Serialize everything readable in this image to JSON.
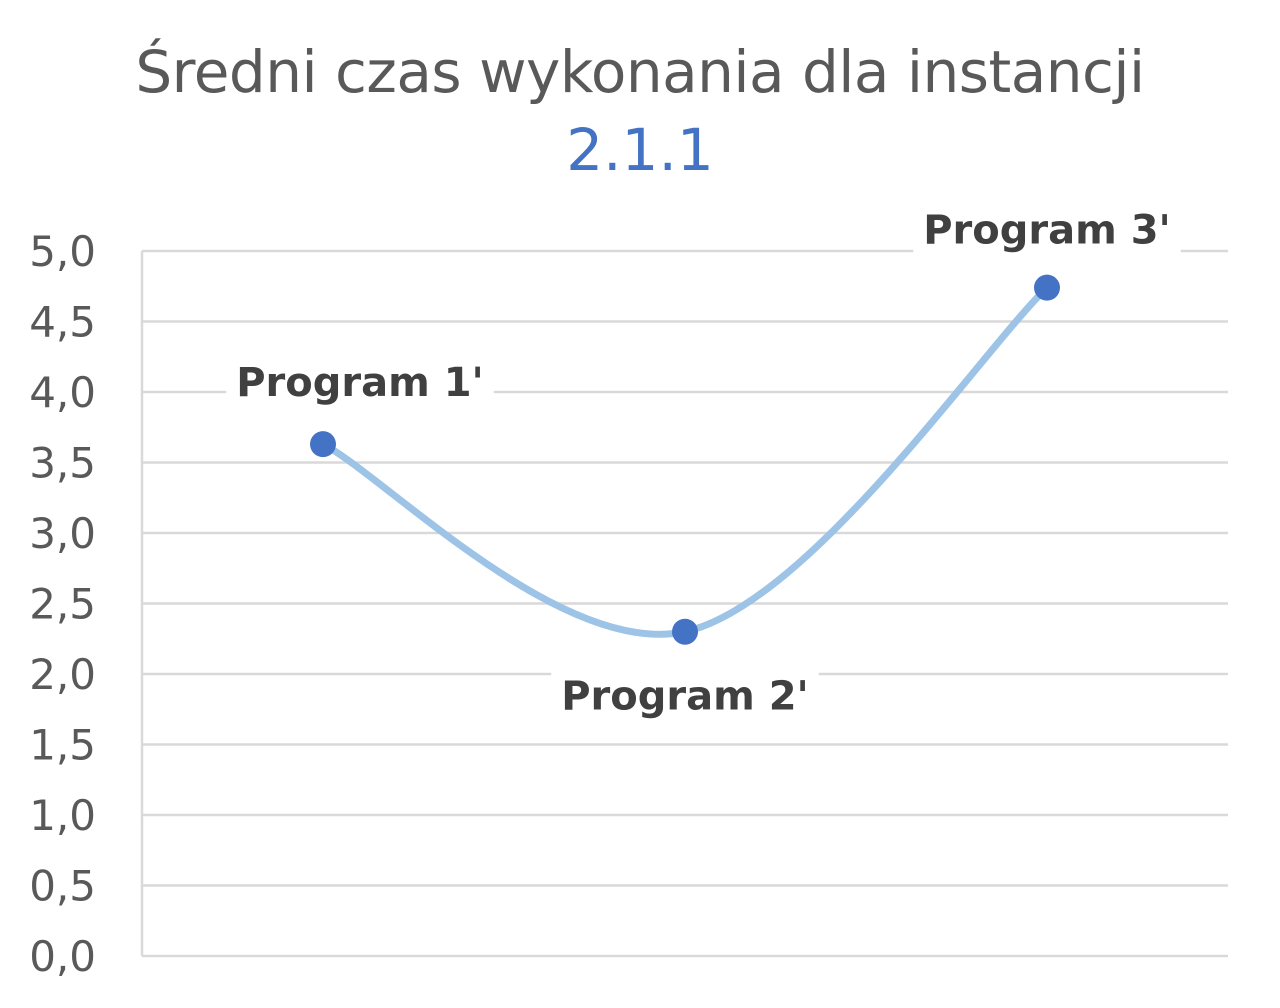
{
  "chart_data": {
    "type": "line",
    "title": "Średni czas wykonania dla instancji",
    "subtitle": "2.1.1",
    "xlabel": "",
    "ylabel": "",
    "categories": [
      "Program 1'",
      "Program 2'",
      "Program 3'"
    ],
    "series": [
      {
        "values": [
          3.63,
          2.3,
          4.74
        ],
        "data_labels": [
          "Program 1'",
          "Program 2'",
          "Program 3'"
        ]
      }
    ],
    "ylim": [
      0,
      5
    ],
    "y_ticks": [
      "0,0",
      "0,5",
      "1,0",
      "1,5",
      "2,0",
      "2,5",
      "3,0",
      "3,5",
      "4,0",
      "4,5",
      "5,0"
    ],
    "grid": true,
    "smooth": true,
    "legend": "none",
    "colors": {
      "line": "#9DC3E6",
      "marker": "#4472C4",
      "grid": "#D9D9D9",
      "title": "#595959",
      "subtitle": "#4472C4"
    }
  }
}
